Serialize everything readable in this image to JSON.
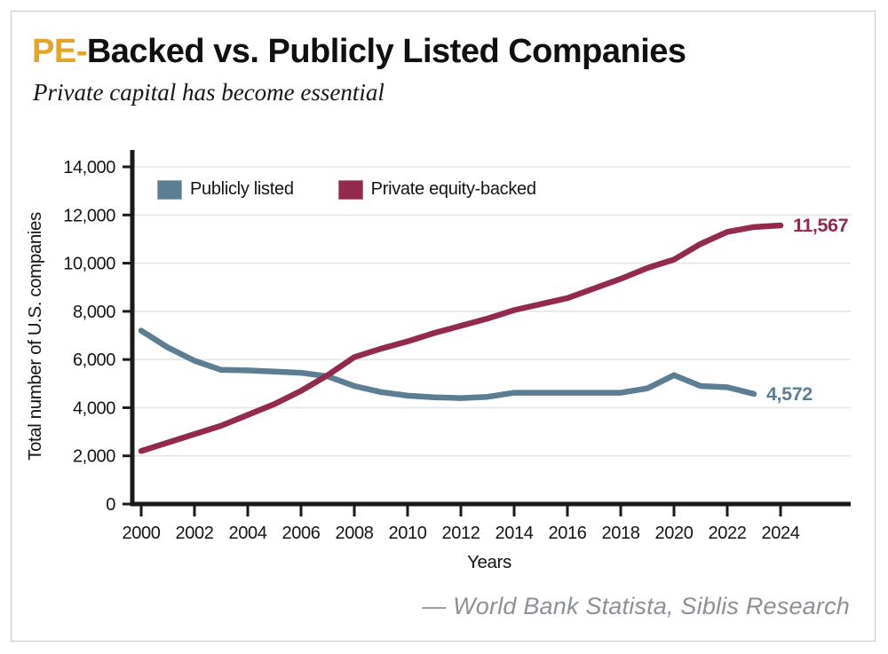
{
  "card": {
    "title_accent": "PE-",
    "title_rest": "Backed vs. Publicly Listed Companies",
    "subtitle": "Private capital has become essential",
    "attribution": "— World Bank Statista, Siblis Research"
  },
  "colors": {
    "accent_gold": "#E2A525",
    "publicly_listed": "#5B7E93",
    "pe_backed": "#93294C",
    "gridline": "#E5E5E5",
    "axis": "#1A1A1A",
    "attribution_gray": "#8C9198",
    "card_border": "#C6C6C6"
  },
  "chart_data": {
    "type": "line",
    "title": "PE-Backed vs. Publicly Listed Companies",
    "subtitle": "Private capital has become essential",
    "xlabel": "Years",
    "ylabel": "Total number of U.S. companies",
    "ylim": [
      0,
      14000
    ],
    "grid": true,
    "legend_position": "top-left-inside",
    "x_ticks": [
      2000,
      2002,
      2004,
      2006,
      2008,
      2010,
      2012,
      2014,
      2016,
      2018,
      2020,
      2022,
      2024
    ],
    "y_ticks": [
      "0",
      "2,000",
      "4,000",
      "6,000",
      "8,000",
      "10,000",
      "12,000",
      "14,000"
    ],
    "series": [
      {
        "name": "Publicly listed",
        "color": "#5B7E93",
        "end_label": "4,572",
        "x": [
          2000,
          2001,
          2002,
          2003,
          2004,
          2005,
          2006,
          2007,
          2008,
          2009,
          2010,
          2011,
          2012,
          2013,
          2014,
          2015,
          2016,
          2017,
          2018,
          2019,
          2020,
          2021,
          2022,
          2023
        ],
        "values": [
          7200,
          6500,
          5950,
          5570,
          5550,
          5500,
          5450,
          5300,
          4900,
          4650,
          4500,
          4430,
          4400,
          4450,
          4620,
          4620,
          4620,
          4620,
          4620,
          4800,
          5350,
          4900,
          4850,
          4572
        ]
      },
      {
        "name": "Private equity-backed",
        "color": "#93294C",
        "end_label": "11,567",
        "x": [
          2000,
          2001,
          2002,
          2003,
          2004,
          2005,
          2006,
          2007,
          2008,
          2009,
          2010,
          2011,
          2012,
          2013,
          2014,
          2015,
          2016,
          2017,
          2018,
          2019,
          2020,
          2021,
          2022,
          2023,
          2024
        ],
        "values": [
          2200,
          2550,
          2900,
          3250,
          3700,
          4150,
          4700,
          5350,
          6100,
          6450,
          6750,
          7100,
          7400,
          7700,
          8050,
          8300,
          8550,
          8950,
          9350,
          9800,
          10150,
          10800,
          11300,
          11500,
          11567
        ]
      }
    ]
  }
}
